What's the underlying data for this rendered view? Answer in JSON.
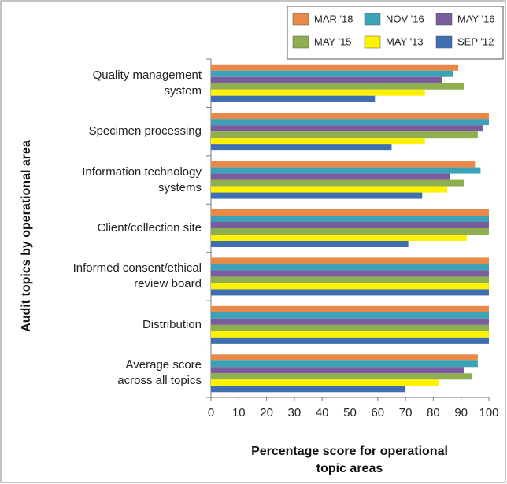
{
  "chart_data": {
    "type": "hbar",
    "ylabel": "Audit topics by operational area",
    "xlabel": "Percentage score for operational topic areas",
    "categories": [
      "Quality management\nsystem",
      "Specimen processing",
      "Information technology\nsystems",
      "Client/collection site",
      "Informed consent/ethical\nreview board",
      "Distribution",
      "Average score\nacross all topics"
    ],
    "series": [
      {
        "name": "MAR '18",
        "color": "#e8894a",
        "values": [
          89,
          100,
          95,
          100,
          100,
          100,
          96
        ]
      },
      {
        "name": "NOV '16",
        "color": "#3ba3b5",
        "values": [
          87,
          100,
          97,
          100,
          100,
          100,
          96
        ]
      },
      {
        "name": "MAY '16",
        "color": "#7a5c9e",
        "values": [
          83,
          98,
          86,
          100,
          100,
          100,
          91
        ]
      },
      {
        "name": "MAY '15",
        "color": "#8fae4f",
        "values": [
          91,
          96,
          91,
          100,
          100,
          100,
          94
        ]
      },
      {
        "name": "MAY '13",
        "color": "#fff200",
        "values": [
          77,
          77,
          85,
          92,
          100,
          100,
          82
        ]
      },
      {
        "name": "SEP '12",
        "color": "#3f6fb0",
        "values": [
          59,
          65,
          76,
          71,
          100,
          100,
          70
        ]
      }
    ],
    "xlim": [
      0,
      100
    ],
    "xticks": [
      0,
      10,
      20,
      30,
      40,
      50,
      60,
      70,
      80,
      90,
      100
    ],
    "legend": "upper right"
  }
}
